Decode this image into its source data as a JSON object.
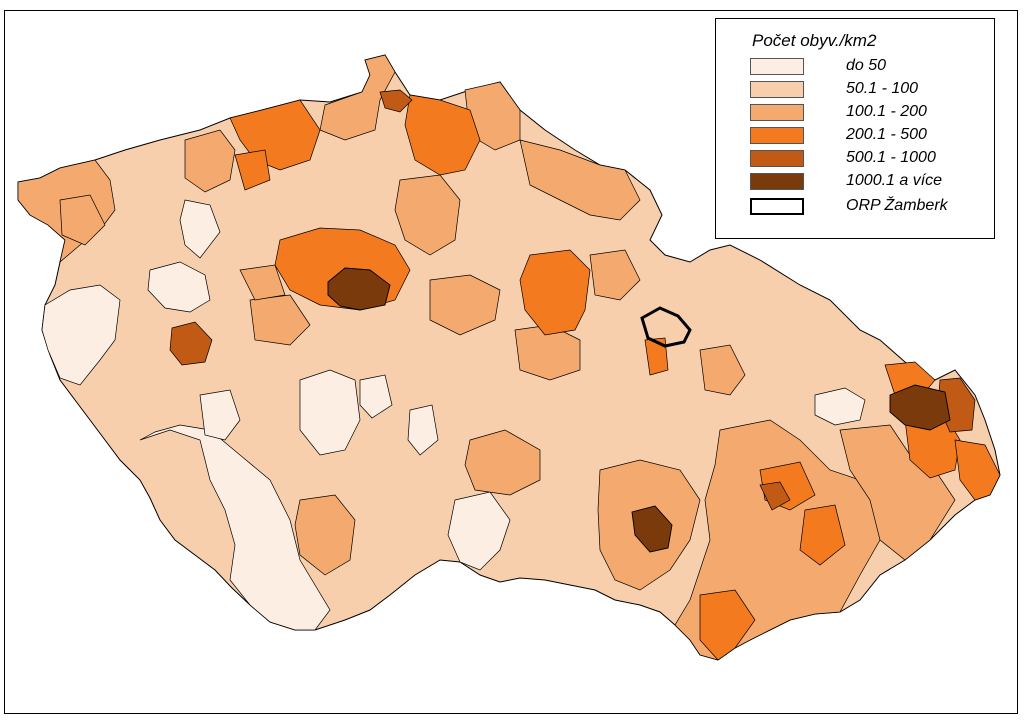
{
  "legend": {
    "title": "Počet obyv./km2",
    "classes": [
      {
        "label": "do 50",
        "color": "#fdeee3"
      },
      {
        "label": "50.1 - 100",
        "color": "#f8cfac"
      },
      {
        "label": "100.1 - 200",
        "color": "#f4a96e"
      },
      {
        "label": "200.1 - 500",
        "color": "#f47a1f"
      },
      {
        "label": "500.1 - 1000",
        "color": "#c05a14"
      },
      {
        "label": "1000.1 a více",
        "color": "#7a3a0c"
      }
    ],
    "highlight_label": "ORP Žamberk"
  },
  "colors": {
    "border": "#000000",
    "country_base": "#f8cfac"
  }
}
